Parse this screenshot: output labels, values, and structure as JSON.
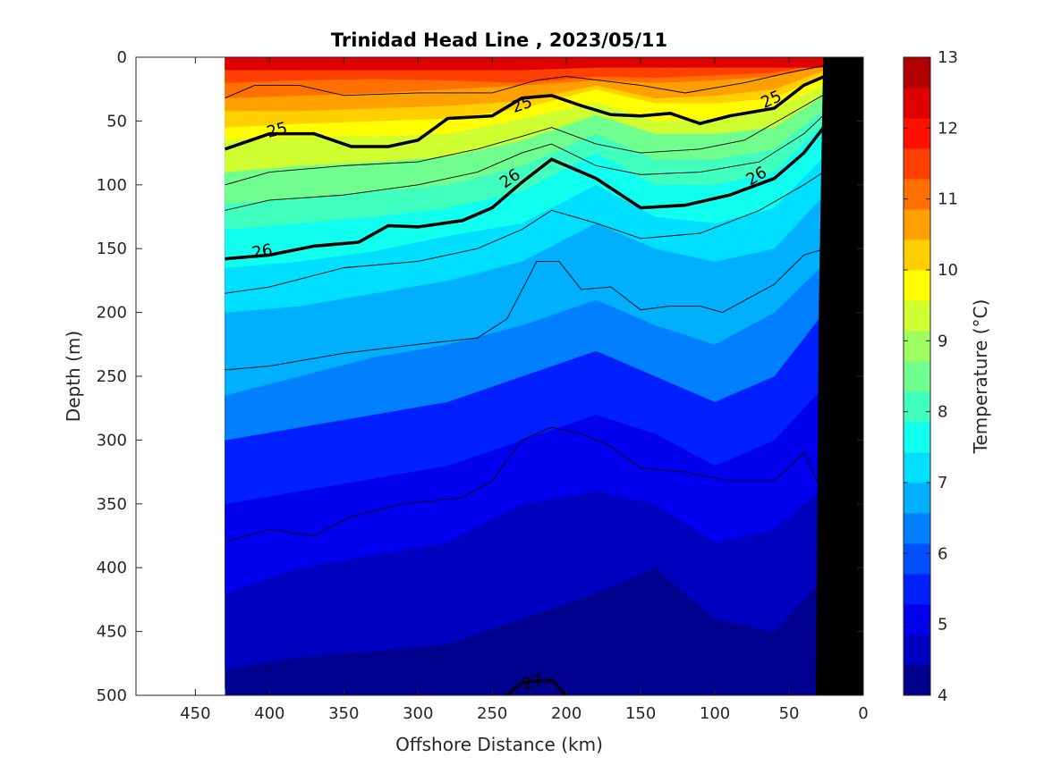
{
  "chart_data": {
    "type": "heatmap",
    "title": "Trinidad Head Line , 2023/05/11",
    "xlabel": "Offshore Distance (km)",
    "ylabel": "Depth (m)",
    "xlim": [
      490,
      0
    ],
    "ylim": [
      0,
      500
    ],
    "x_reversed": true,
    "y_reversed": true,
    "xticks": [
      450,
      400,
      350,
      300,
      250,
      200,
      150,
      100,
      50,
      0
    ],
    "yticks": [
      0,
      50,
      100,
      150,
      200,
      250,
      300,
      350,
      400,
      450,
      500
    ],
    "data_extent_km": [
      430,
      20
    ],
    "colorbar": {
      "label": "Temperature (°C)",
      "ticks": [
        4,
        5,
        6,
        7,
        8,
        9,
        10,
        11,
        12,
        13
      ],
      "levels": [
        4,
        4.5,
        5,
        5.5,
        6,
        6.5,
        7,
        7.5,
        8,
        8.5,
        9,
        9.5,
        10,
        10.5,
        11,
        11.5,
        12,
        12.5,
        13
      ],
      "colors": [
        "#00008f",
        "#0000c0",
        "#0000ef",
        "#0020ff",
        "#0050ff",
        "#0080ff",
        "#00b0ff",
        "#00dfff",
        "#10ffef",
        "#40ffbf",
        "#70ff8f",
        "#a0ff60",
        "#cfff30",
        "#ffff00",
        "#ffcf00",
        "#ff9f00",
        "#ff7000",
        "#ff4000",
        "#ff1000",
        "#df0000",
        "#b00000"
      ]
    },
    "temperature_bands": [
      {
        "temp": 12.2,
        "depths": [
          10,
          10,
          10,
          10,
          10,
          8,
          8,
          8,
          8,
          8
        ]
      },
      {
        "temp": 11.7,
        "depths": [
          20,
          18,
          17,
          18,
          20,
          15,
          16,
          14,
          12,
          4
        ]
      },
      {
        "temp": 11.2,
        "depths": [
          32,
          30,
          28,
          25,
          22,
          18,
          20,
          18,
          15,
          6
        ]
      },
      {
        "temp": 10.7,
        "depths": [
          42,
          42,
          40,
          38,
          34,
          22,
          32,
          30,
          25,
          8
        ]
      },
      {
        "temp": 10.2,
        "depths": [
          55,
          52,
          50,
          48,
          40,
          25,
          36,
          36,
          32,
          10
        ]
      },
      {
        "temp": 9.7,
        "depths": [
          65,
          62,
          62,
          60,
          48,
          35,
          50,
          48,
          40,
          18
        ]
      },
      {
        "temp": 9.2,
        "depths": [
          90,
          85,
          82,
          78,
          65,
          45,
          60,
          60,
          55,
          25
        ]
      },
      {
        "temp": 8.7,
        "depths": [
          115,
          110,
          105,
          100,
          85,
          60,
          80,
          80,
          72,
          35
        ]
      },
      {
        "temp": 8.2,
        "depths": [
          135,
          130,
          125,
          118,
          105,
          75,
          100,
          100,
          90,
          45
        ]
      },
      {
        "temp": 7.7,
        "depths": [
          165,
          160,
          152,
          140,
          130,
          100,
          125,
          130,
          118,
          70
        ]
      },
      {
        "temp": 7.2,
        "depths": [
          200,
          195,
          185,
          175,
          160,
          130,
          150,
          160,
          150,
          100
        ]
      },
      {
        "temp": 6.7,
        "depths": [
          265,
          250,
          235,
          225,
          210,
          190,
          210,
          225,
          200,
          155
        ]
      },
      {
        "temp": 6.2,
        "depths": [
          300,
          290,
          280,
          270,
          250,
          230,
          250,
          270,
          250,
          190
        ]
      },
      {
        "temp": 5.7,
        "depths": [
          350,
          340,
          330,
          320,
          300,
          280,
          295,
          320,
          300,
          250
        ]
      },
      {
        "temp": 5.2,
        "depths": [
          420,
          400,
          390,
          380,
          350,
          340,
          350,
          380,
          370,
          330
        ]
      },
      {
        "temp": 4.7,
        "depths": [
          480,
          470,
          465,
          460,
          440,
          420,
          400,
          440,
          450,
          400
        ]
      },
      {
        "temp": 4.2,
        "depths": [
          495,
          495,
          495,
          495,
          490,
          488,
          470,
          490,
          495,
          480
        ]
      }
    ],
    "band_stations_km": [
      430,
      380,
      330,
      280,
      230,
      180,
      140,
      100,
      60,
      20
    ],
    "density_contours": [
      {
        "label": "",
        "bold": false,
        "points": [
          [
            430,
            32
          ],
          [
            410,
            22
          ],
          [
            380,
            22
          ],
          [
            350,
            30
          ],
          [
            300,
            28
          ],
          [
            250,
            28
          ],
          [
            220,
            18
          ],
          [
            200,
            15
          ],
          [
            150,
            22
          ],
          [
            120,
            28
          ],
          [
            80,
            20
          ],
          [
            50,
            12
          ],
          [
            20,
            5
          ]
        ]
      },
      {
        "label": "25",
        "bold": true,
        "points": [
          [
            430,
            72
          ],
          [
            400,
            60
          ],
          [
            370,
            60
          ],
          [
            345,
            70
          ],
          [
            320,
            70
          ],
          [
            300,
            65
          ],
          [
            280,
            48
          ],
          [
            250,
            46
          ],
          [
            230,
            32
          ],
          [
            210,
            30
          ],
          [
            190,
            38
          ],
          [
            170,
            45
          ],
          [
            150,
            46
          ],
          [
            130,
            44
          ],
          [
            110,
            52
          ],
          [
            90,
            46
          ],
          [
            60,
            40
          ],
          [
            40,
            22
          ],
          [
            20,
            12
          ]
        ]
      },
      {
        "label": "",
        "bold": false,
        "points": [
          [
            430,
            100
          ],
          [
            400,
            90
          ],
          [
            350,
            85
          ],
          [
            300,
            82
          ],
          [
            260,
            72
          ],
          [
            230,
            62
          ],
          [
            210,
            55
          ],
          [
            180,
            68
          ],
          [
            150,
            75
          ],
          [
            110,
            72
          ],
          [
            80,
            65
          ],
          [
            50,
            45
          ],
          [
            20,
            25
          ]
        ]
      },
      {
        "label": "",
        "bold": false,
        "points": [
          [
            430,
            120
          ],
          [
            400,
            112
          ],
          [
            350,
            108
          ],
          [
            300,
            100
          ],
          [
            260,
            90
          ],
          [
            230,
            75
          ],
          [
            210,
            68
          ],
          [
            180,
            85
          ],
          [
            150,
            92
          ],
          [
            110,
            90
          ],
          [
            70,
            82
          ],
          [
            40,
            60
          ],
          [
            20,
            38
          ]
        ]
      },
      {
        "label": "26",
        "bold": true,
        "points": [
          [
            430,
            158
          ],
          [
            400,
            155
          ],
          [
            370,
            148
          ],
          [
            340,
            145
          ],
          [
            320,
            132
          ],
          [
            300,
            133
          ],
          [
            270,
            128
          ],
          [
            250,
            118
          ],
          [
            230,
            98
          ],
          [
            210,
            80
          ],
          [
            180,
            95
          ],
          [
            150,
            118
          ],
          [
            120,
            116
          ],
          [
            90,
            108
          ],
          [
            60,
            95
          ],
          [
            40,
            75
          ],
          [
            20,
            45
          ]
        ]
      },
      {
        "label": "",
        "bold": false,
        "points": [
          [
            430,
            185
          ],
          [
            400,
            180
          ],
          [
            350,
            165
          ],
          [
            300,
            160
          ],
          [
            260,
            150
          ],
          [
            230,
            135
          ],
          [
            210,
            120
          ],
          [
            180,
            130
          ],
          [
            150,
            142
          ],
          [
            110,
            138
          ],
          [
            70,
            120
          ],
          [
            40,
            100
          ],
          [
            20,
            85
          ]
        ]
      },
      {
        "label": "",
        "bold": false,
        "points": [
          [
            430,
            245
          ],
          [
            400,
            242
          ],
          [
            350,
            232
          ],
          [
            300,
            225
          ],
          [
            260,
            220
          ],
          [
            240,
            205
          ],
          [
            220,
            160
          ],
          [
            205,
            160
          ],
          [
            190,
            182
          ],
          [
            170,
            180
          ],
          [
            150,
            198
          ],
          [
            130,
            195
          ],
          [
            110,
            195
          ],
          [
            95,
            200
          ],
          [
            60,
            178
          ],
          [
            40,
            155
          ],
          [
            20,
            148
          ]
        ]
      },
      {
        "label": "",
        "bold": false,
        "points": [
          [
            430,
            380
          ],
          [
            400,
            370
          ],
          [
            370,
            375
          ],
          [
            345,
            360
          ],
          [
            310,
            350
          ],
          [
            270,
            345
          ],
          [
            250,
            332
          ],
          [
            230,
            300
          ],
          [
            210,
            290
          ],
          [
            190,
            295
          ],
          [
            170,
            305
          ],
          [
            150,
            322
          ],
          [
            120,
            325
          ],
          [
            90,
            332
          ],
          [
            60,
            332
          ],
          [
            40,
            310
          ],
          [
            30,
            335
          ]
        ]
      }
    ],
    "bottom_contour": {
      "label": "27",
      "points": [
        [
          240,
          500
        ],
        [
          230,
          490
        ],
        [
          210,
          488
        ],
        [
          200,
          500
        ]
      ]
    },
    "bathymetry_km_depth": [
      [
        20,
        0
      ],
      [
        27,
        0
      ],
      [
        30,
        200
      ],
      [
        32,
        500
      ],
      [
        0,
        500
      ],
      [
        0,
        0
      ]
    ]
  }
}
